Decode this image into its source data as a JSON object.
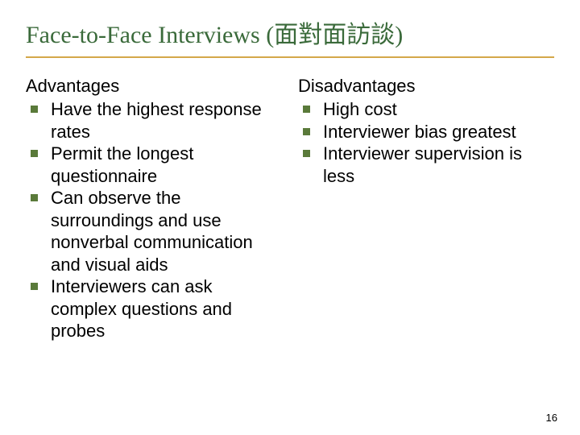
{
  "title": "Face-to-Face Interviews (面對面訪談)",
  "title_color": "#3a6a3a",
  "title_fontsize": 30,
  "underline_color": "#d4a84a",
  "bullet_color": "#5a7a3a",
  "body_fontsize": 22,
  "text_color": "#000000",
  "background_color": "#ffffff",
  "left": {
    "header": "Advantages",
    "items": [
      "Have the highest response rates",
      "Permit the longest questionnaire",
      "Can observe the surroundings and use nonverbal communication and visual aids",
      "Interviewers can ask complex questions and probes"
    ]
  },
  "right": {
    "header": "Disadvantages",
    "items": [
      "High cost",
      "Interviewer bias greatest",
      "Interviewer supervision is less"
    ]
  },
  "page_number": "16",
  "page_number_fontsize": 13
}
